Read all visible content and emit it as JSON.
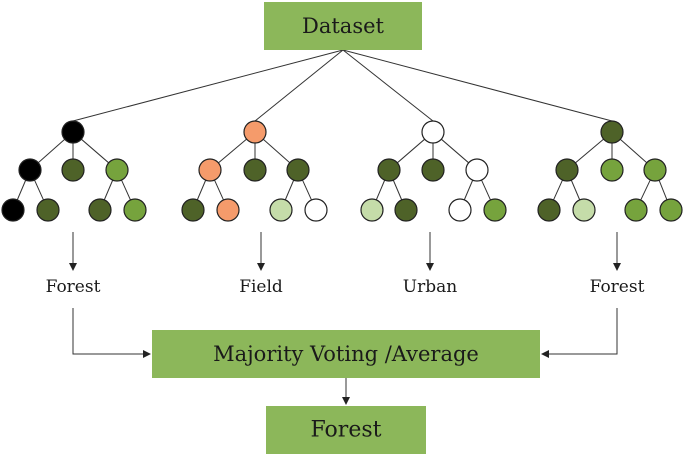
{
  "colors": {
    "box": "#8cb75a",
    "black": "#000000",
    "dark_green": "#4e6228",
    "green": "#76a33d",
    "light_green": "#c5dca9",
    "orange": "#f59b6b",
    "white": "#ffffff"
  },
  "dataset": {
    "label": "Dataset"
  },
  "trees": [
    {
      "label": "Forest",
      "nodes": {
        "root": "black",
        "l1": [
          "black",
          "dark_green",
          "green"
        ],
        "l2": [
          "black",
          "dark_green",
          "dark_green",
          "green"
        ]
      }
    },
    {
      "label": "Field",
      "nodes": {
        "root": "orange",
        "l1": [
          "orange",
          "dark_green",
          "dark_green"
        ],
        "l2": [
          "dark_green",
          "orange",
          "light_green",
          "white"
        ]
      }
    },
    {
      "label": "Urban",
      "nodes": {
        "root": "white",
        "l1": [
          "dark_green",
          "dark_green",
          "white"
        ],
        "l2": [
          "light_green",
          "dark_green",
          "white",
          "green"
        ]
      }
    },
    {
      "label": "Forest",
      "nodes": {
        "root": "dark_green",
        "l1": [
          "dark_green",
          "green",
          "green"
        ],
        "l2": [
          "dark_green",
          "light_green",
          "green",
          "green"
        ]
      }
    }
  ],
  "aggregation": {
    "label": "Majority Voting /Average"
  },
  "result": {
    "label": "Forest"
  }
}
